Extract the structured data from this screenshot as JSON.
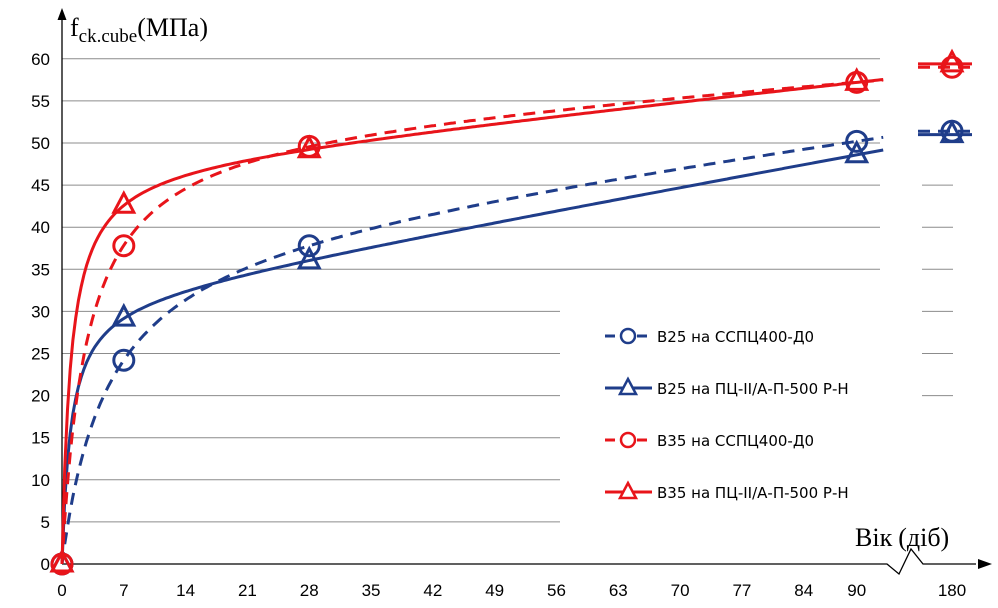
{
  "chart_data": {
    "type": "line",
    "ylabel": {
      "main": "f",
      "sub": "ck.cube",
      "unit": "(МПа)"
    },
    "xlabel": {
      "main": "Вік",
      "unit": "(діб)"
    },
    "ylim": [
      0,
      60
    ],
    "y_ticks": [
      "0",
      "5",
      "10",
      "15",
      "20",
      "25",
      "30",
      "35",
      "40",
      "45",
      "50",
      "55",
      "60"
    ],
    "x_ticks": [
      "0",
      "7",
      "14",
      "21",
      "28",
      "35",
      "42",
      "49",
      "56",
      "63",
      "70",
      "77",
      "84",
      "90",
      "180"
    ],
    "x_axis_break": "between 90 and 180",
    "grid": "horizontal",
    "legend_position": "right-bottom",
    "series": [
      {
        "name": "B25 на ССПЦ400-Д0",
        "color": "#1f3d8a",
        "dash": "dashed",
        "marker": "circle",
        "points": [
          [
            0,
            0
          ],
          [
            7,
            24.2
          ],
          [
            28,
            37.8
          ],
          [
            90,
            50.2
          ],
          [
            180,
            51.4
          ]
        ]
      },
      {
        "name": "B25 на ПЦ-ІІ/А-П-500 Р-Н",
        "color": "#1f3d8a",
        "dash": "solid",
        "marker": "triangle",
        "points": [
          [
            0,
            0
          ],
          [
            7,
            29.2
          ],
          [
            28,
            36.0
          ],
          [
            90,
            48.6
          ],
          [
            180,
            51.0
          ]
        ]
      },
      {
        "name": "B35 на ССПЦ400-Д0",
        "color": "#e8141a",
        "dash": "dashed",
        "marker": "circle",
        "points": [
          [
            0,
            0
          ],
          [
            7,
            37.8
          ],
          [
            28,
            49.6
          ],
          [
            90,
            57.2
          ],
          [
            180,
            59.0
          ]
        ]
      },
      {
        "name": "B35 на ПЦ-ІІ/А-П-500 Р-Н",
        "color": "#e8141a",
        "dash": "solid",
        "marker": "triangle",
        "points": [
          [
            0,
            0
          ],
          [
            7,
            42.6
          ],
          [
            28,
            49.2
          ],
          [
            90,
            57.2
          ],
          [
            180,
            59.4
          ]
        ]
      }
    ]
  }
}
